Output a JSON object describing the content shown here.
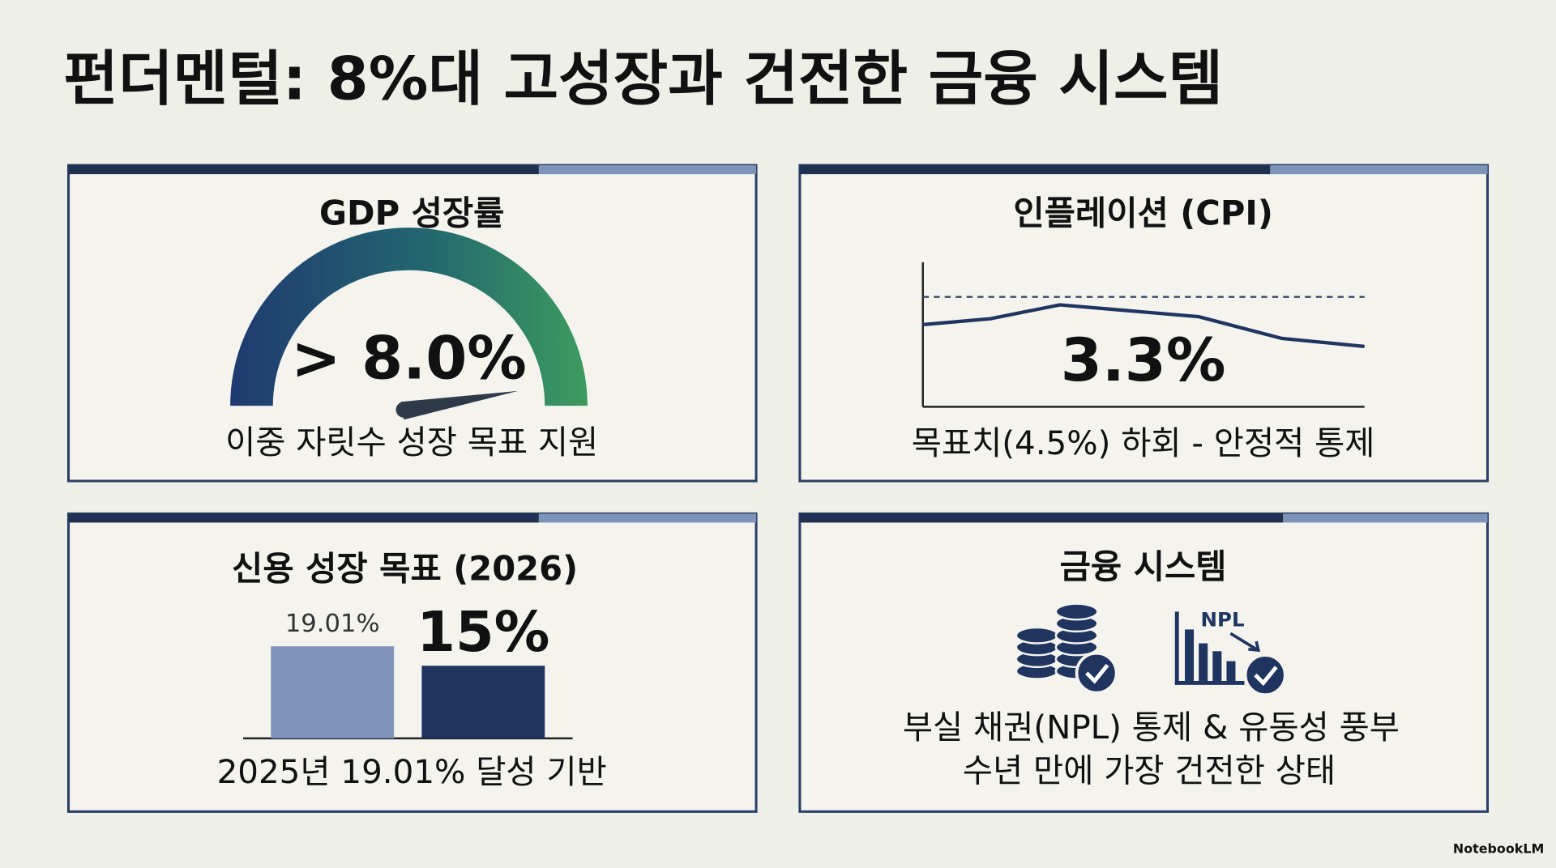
{
  "header": {
    "title": "펀더멘털: 8%대 고성장과 건전한 금융 시스템"
  },
  "panels": [
    {
      "title": "GDP 성장률",
      "value": "> 8.0%",
      "caption": "이중 자릿수 성장 목표 지원"
    },
    {
      "title": "인플레이션 (CPI)",
      "value": "3.3%",
      "caption": "목표치(4.5%) 하회 - 안정적 통제"
    },
    {
      "title": "신용 성장 목표 (2026)",
      "bars": {
        "values": [
          19.01,
          15
        ],
        "value_labels": [
          "19.01%",
          "15%"
        ]
      },
      "caption": "2025년 19.01% 달성 기반"
    },
    {
      "title": "금융 시스템",
      "icon_label": "NPL",
      "lines": [
        "부실 채권(NPL) 통제 & 유동성 풍부",
        "수년 만에 가장 건전한 상태"
      ]
    }
  ],
  "footer": "NotebookLM"
}
